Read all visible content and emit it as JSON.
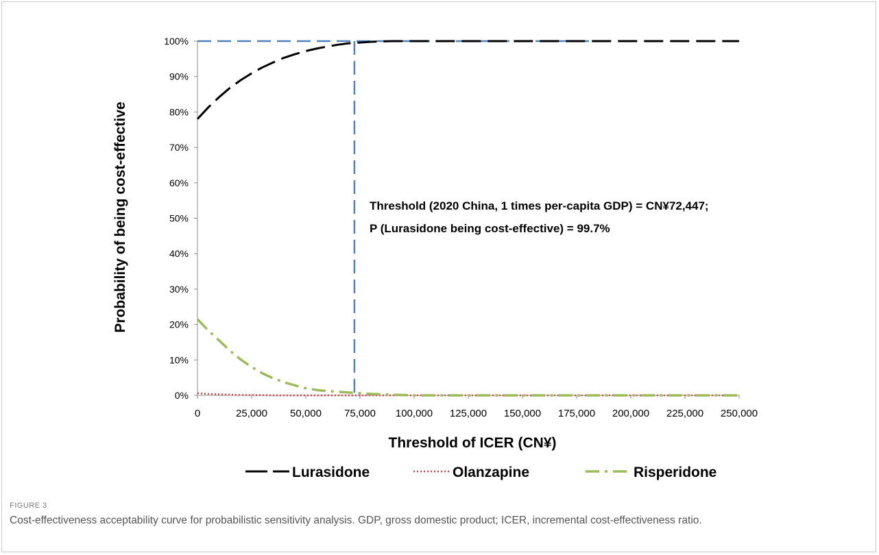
{
  "figure": {
    "label": "FIGURE 3",
    "caption": "Cost-effectiveness acceptability curve for probabilistic sensitivity analysis. GDP, gross domestic product; ICER, incremental cost-effectiveness ratio."
  },
  "chart_data": {
    "type": "line",
    "xlabel": "Threshold of ICER (CN¥)",
    "ylabel": "Probability of being cost-effective",
    "xlim": [
      0,
      250000
    ],
    "ylim": [
      0,
      100
    ],
    "x_ticks": [
      0,
      25000,
      50000,
      75000,
      100000,
      125000,
      150000,
      175000,
      200000,
      225000,
      250000
    ],
    "x_tick_labels": [
      "0",
      "25,000",
      "50,000",
      "75,000",
      "100,000",
      "125,000",
      "150,000",
      "175,000",
      "200,000",
      "225,000",
      "250,000"
    ],
    "y_ticks": [
      0,
      10,
      20,
      30,
      40,
      50,
      60,
      70,
      80,
      90,
      100
    ],
    "y_tick_labels": [
      "0%",
      "10%",
      "20%",
      "30%",
      "40%",
      "50%",
      "60%",
      "70%",
      "80%",
      "90%",
      "100%"
    ],
    "grid": false,
    "legend_position": "bottom",
    "x": [
      0,
      5000,
      10000,
      15000,
      20000,
      25000,
      30000,
      35000,
      40000,
      45000,
      50000,
      55000,
      60000,
      65000,
      70000,
      75000,
      80000,
      85000,
      90000,
      95000,
      100000,
      125000,
      150000,
      175000,
      200000,
      225000,
      250000
    ],
    "series": [
      {
        "name": "Lurasidone",
        "color": "#000000",
        "dash": "long-dash",
        "values": [
          78,
          81.3,
          84.2,
          86.8,
          89.0,
          90.9,
          92.6,
          94.0,
          95.3,
          96.3,
          97.2,
          97.9,
          98.5,
          99.0,
          99.4,
          99.6,
          99.8,
          99.9,
          100,
          100,
          100,
          100,
          100,
          100,
          100,
          100,
          100
        ]
      },
      {
        "name": "Olanzapine",
        "color": "#d9434b",
        "dash": "dotted",
        "values": [
          0.6,
          0.4,
          0.3,
          0.2,
          0.1,
          0.1,
          0.05,
          0,
          0,
          0,
          0,
          0,
          0,
          0,
          0,
          0,
          0,
          0,
          0,
          0,
          0,
          0,
          0,
          0,
          0,
          0,
          0
        ]
      },
      {
        "name": "Risperidone",
        "color": "#9bbb59",
        "dash": "dash-dot",
        "values": [
          21.5,
          18.3,
          15.5,
          12.6,
          10.1,
          8.0,
          6.2,
          4.8,
          3.7,
          2.8,
          2.0,
          1.5,
          1.2,
          1.0,
          0.8,
          0.6,
          0.4,
          0.3,
          0.2,
          0.1,
          0,
          0,
          0,
          0,
          0,
          0,
          0
        ]
      }
    ],
    "reference_lines": {
      "color": "#4f81bd",
      "threshold_x": 72447,
      "probability_y": 100
    },
    "annotation": {
      "line1": "Threshold (2020 China, 1 times per-capita GDP) = CN¥72,447;",
      "line2": "P (Lurasidone being cost-effective) = 99.7%"
    }
  }
}
